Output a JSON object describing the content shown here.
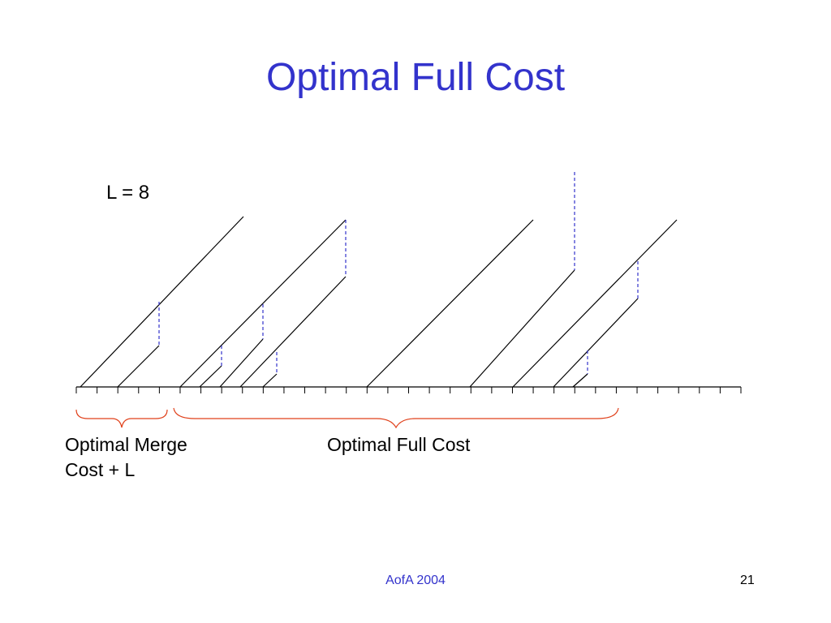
{
  "slide": {
    "title": "Optimal Full Cost",
    "parameter_label": "L = 8",
    "caption_left_line1": "Optimal Merge",
    "caption_left_line2": "Cost + L",
    "caption_right": "Optimal Full Cost",
    "footer": "AofA 2004",
    "page_number": "21"
  },
  "colors": {
    "title": "#3333CC",
    "solid_line": "#000000",
    "dashed_line": "#3333CC",
    "brace": "#E0401A"
  }
}
